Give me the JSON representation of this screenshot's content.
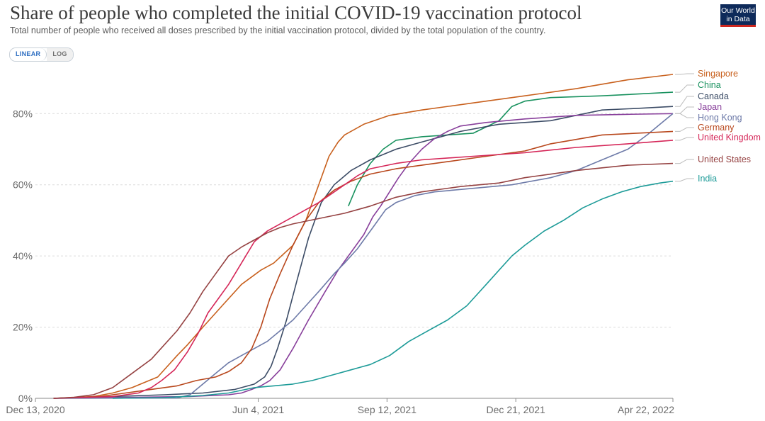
{
  "header": {
    "title": "Share of people who completed the initial COVID-19 vaccination protocol",
    "subtitle": "Total number of people who received all doses prescribed by the initial vaccination protocol, divided by the total population of the country.",
    "logo_line1": "Our World",
    "logo_line2": "in Data"
  },
  "controls": {
    "linear_label": "LINEAR",
    "log_label": "LOG"
  },
  "chart_data": {
    "type": "line",
    "title": "Share of people who completed the initial COVID-19 vaccination protocol",
    "xlabel": "",
    "ylabel": "",
    "x_unit": "days since Dec 13, 2020",
    "xlim": [
      0,
      495
    ],
    "ylim": [
      0,
      92
    ],
    "y_ticks": [
      0,
      20,
      40,
      60,
      80
    ],
    "y_tick_labels": [
      "0%",
      "20%",
      "40%",
      "60%",
      "80%"
    ],
    "x_ticks": [
      0,
      173,
      273,
      373,
      495
    ],
    "x_tick_labels": [
      "Dec 13, 2020",
      "Jun 4, 2021",
      "Sep 12, 2021",
      "Dec 21, 2021",
      "Apr 22, 2022"
    ],
    "grid": "horizontal dashed",
    "legend": "right, line-end labels",
    "series": [
      {
        "name": "Singapore",
        "color": "#c8601d",
        "label_y": 90.5,
        "x": [
          14,
          45,
          60,
          75,
          95,
          110,
          118,
          130,
          145,
          160,
          175,
          185,
          200,
          210,
          220,
          228,
          235,
          240,
          255,
          275,
          300,
          340,
          380,
          420,
          460,
          495
        ],
        "y": [
          0,
          0.5,
          1.5,
          3,
          6,
          12,
          15,
          20,
          26,
          32,
          36,
          38,
          43,
          50,
          60,
          68,
          72,
          74,
          77,
          79.5,
          81,
          83,
          85,
          87,
          89.5,
          91
        ]
      },
      {
        "name": "China",
        "color": "#18915e",
        "label_y": 86.5,
        "x": [
          243,
          250,
          260,
          270,
          280,
          300,
          340,
          360,
          370,
          380,
          400,
          440,
          495
        ],
        "y": [
          54,
          60,
          66,
          70,
          72.5,
          73.5,
          74.5,
          78,
          82,
          83.5,
          84.5,
          85,
          86
        ]
      },
      {
        "name": "Canada",
        "color": "#3c4c66",
        "label_y": 83.5,
        "x": [
          14,
          60,
          100,
          130,
          155,
          170,
          178,
          183,
          188,
          195,
          203,
          212,
          222,
          232,
          245,
          260,
          280,
          300,
          330,
          360,
          400,
          440,
          470,
          495
        ],
        "y": [
          0,
          0.5,
          1,
          1.5,
          2.5,
          4,
          6,
          9,
          14,
          22,
          33,
          45,
          55,
          60,
          64,
          67,
          70,
          72,
          75,
          77,
          78,
          81,
          81.5,
          82
        ]
      },
      {
        "name": "Japan",
        "color": "#883f9b",
        "label_y": 80.5,
        "x": [
          14,
          120,
          150,
          160,
          168,
          175,
          182,
          190,
          200,
          212,
          225,
          235,
          245,
          255,
          262,
          268,
          275,
          282,
          290,
          300,
          310,
          320,
          330,
          350,
          380,
          420,
          460,
          495
        ],
        "y": [
          0,
          0.5,
          1,
          1.5,
          2.5,
          3.5,
          5,
          8,
          14,
          22,
          30,
          36,
          41,
          46,
          51,
          54,
          58,
          62,
          66,
          70,
          73,
          75,
          76.5,
          77.5,
          78.5,
          79.5,
          79.8,
          80
        ]
      },
      {
        "name": "Hong Kong",
        "color": "#6d7aa8",
        "label_y": 77.5,
        "x": [
          14,
          110,
          120,
          130,
          140,
          150,
          160,
          170,
          180,
          190,
          200,
          210,
          220,
          232,
          240,
          250,
          262,
          272,
          280,
          295,
          310,
          340,
          370,
          400,
          420,
          440,
          460,
          475,
          485,
          495
        ],
        "y": [
          0,
          0.1,
          1,
          4,
          7,
          10,
          12,
          14,
          16,
          19,
          22,
          26,
          30,
          35,
          38,
          42,
          48,
          53,
          55,
          57,
          58,
          59,
          60,
          62,
          64,
          67,
          70,
          74,
          77,
          80
        ]
      },
      {
        "name": "Germany",
        "color": "#b8471c",
        "label_y": 75,
        "x": [
          14,
          50,
          70,
          90,
          110,
          125,
          140,
          150,
          160,
          168,
          175,
          182,
          190,
          200,
          210,
          220,
          232,
          245,
          260,
          280,
          300,
          320,
          340,
          360,
          380,
          400,
          440,
          495
        ],
        "y": [
          0,
          0.5,
          1.5,
          2.5,
          3.5,
          5,
          6,
          7.5,
          10,
          14,
          20,
          28,
          35,
          43,
          50,
          55,
          58.5,
          61,
          63,
          64.5,
          65.5,
          66.5,
          67.5,
          68.5,
          69.5,
          71.5,
          74,
          75
        ]
      },
      {
        "name": "United Kingdom",
        "color": "#d52658",
        "label_y": 72.5,
        "x": [
          14,
          60,
          80,
          90,
          98,
          108,
          118,
          126,
          134,
          142,
          150,
          160,
          170,
          180,
          190,
          200,
          210,
          220,
          230,
          240,
          250,
          260,
          280,
          300,
          340,
          380,
          420,
          460,
          495
        ],
        "y": [
          0,
          0.5,
          1.5,
          3,
          5,
          8,
          13,
          18,
          24,
          28,
          32,
          38,
          44,
          47,
          49,
          51,
          53,
          55,
          57.5,
          60,
          62.5,
          64.5,
          66,
          67,
          68,
          69,
          70.5,
          71.5,
          72.5
        ]
      },
      {
        "name": "United States",
        "color": "#954242",
        "label_y": 66,
        "x": [
          14,
          30,
          45,
          60,
          75,
          90,
          100,
          110,
          120,
          130,
          140,
          150,
          160,
          170,
          180,
          190,
          200,
          220,
          240,
          260,
          280,
          300,
          330,
          360,
          380,
          420,
          460,
          495
        ],
        "y": [
          0,
          0.3,
          1,
          3,
          7,
          11,
          15,
          19,
          24,
          30,
          35,
          40,
          42.5,
          44.5,
          46.5,
          48,
          49,
          50.5,
          52,
          54,
          56.5,
          58,
          59.5,
          60.5,
          62,
          64,
          65.5,
          66
        ]
      },
      {
        "name": "India",
        "color": "#1d9b98",
        "label_y": 61,
        "x": [
          60,
          100,
          130,
          150,
          170,
          185,
          200,
          215,
          230,
          245,
          260,
          275,
          290,
          305,
          320,
          335,
          350,
          360,
          370,
          380,
          395,
          410,
          425,
          440,
          455,
          470,
          485,
          495
        ],
        "y": [
          0,
          0.2,
          0.8,
          1.5,
          3,
          3.5,
          4,
          5,
          6.5,
          8,
          9.5,
          12,
          16,
          19,
          22,
          26,
          32,
          36,
          40,
          43,
          47,
          50,
          53.5,
          56,
          58,
          59.5,
          60.5,
          61
        ]
      }
    ]
  }
}
